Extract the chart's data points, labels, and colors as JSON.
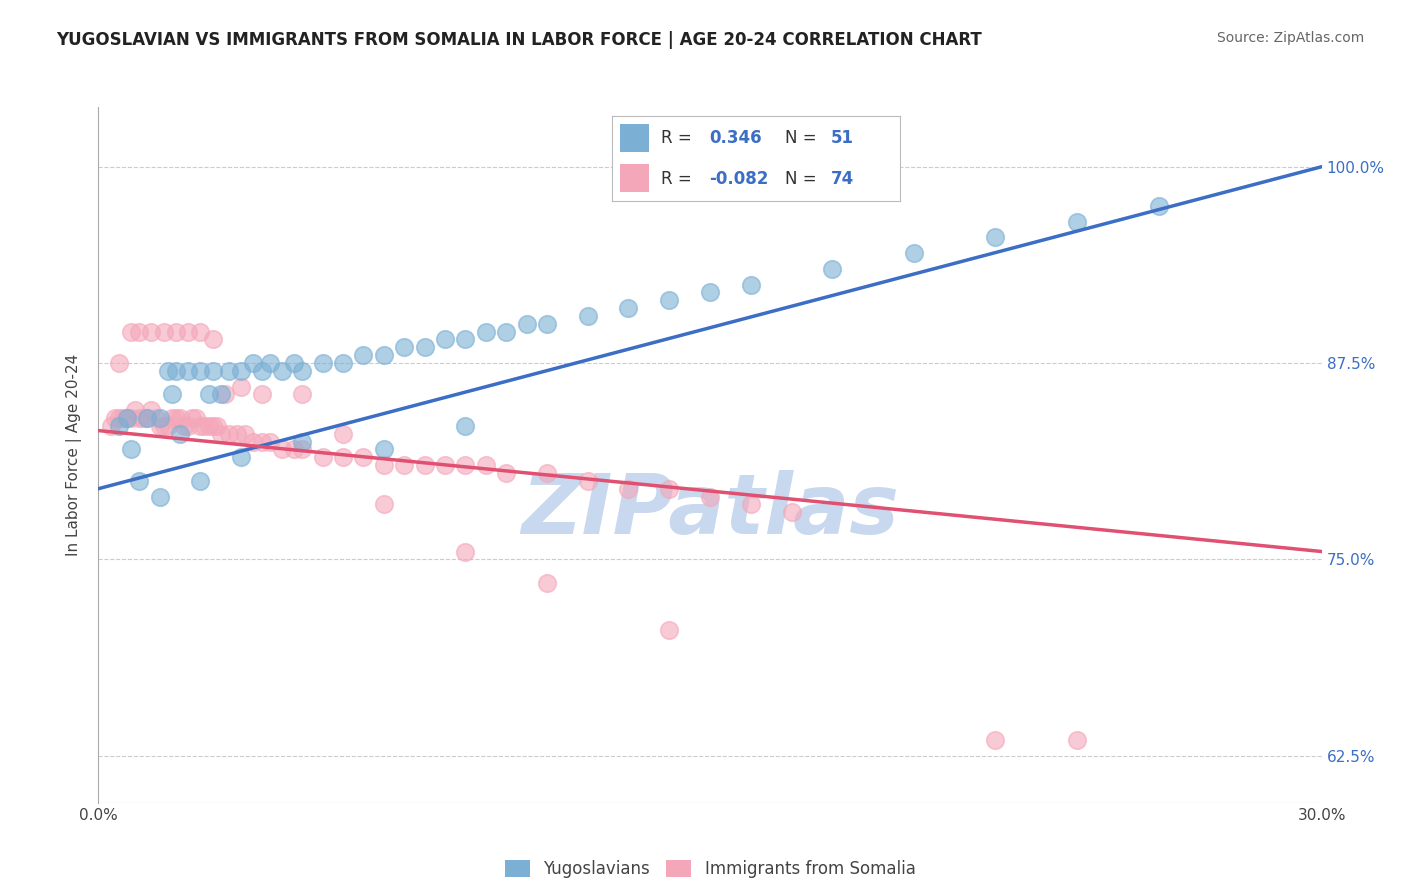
{
  "title": "YUGOSLAVIAN VS IMMIGRANTS FROM SOMALIA IN LABOR FORCE | AGE 20-24 CORRELATION CHART",
  "source": "Source: ZipAtlas.com",
  "ylabel": "In Labor Force | Age 20-24",
  "x_min": 0.0,
  "x_max": 0.3,
  "y_min": 0.595,
  "y_max": 1.038,
  "x_ticks": [
    0.0,
    0.05,
    0.1,
    0.15,
    0.2,
    0.25,
    0.3
  ],
  "x_tick_labels": [
    "0.0%",
    "",
    "",
    "",
    "",
    "",
    "30.0%"
  ],
  "y_ticks": [
    0.625,
    0.75,
    0.875,
    1.0
  ],
  "y_tick_labels": [
    "62.5%",
    "75.0%",
    "87.5%",
    "100.0%"
  ],
  "blue_R": 0.346,
  "blue_N": 51,
  "pink_R": -0.082,
  "pink_N": 74,
  "blue_color": "#7BAFD4",
  "pink_color": "#F4A7B9",
  "blue_line_color": "#3B6EC4",
  "pink_line_color": "#E05070",
  "watermark": "ZIPatlas",
  "watermark_color": "#C8D8EE",
  "legend_label_blue": "Yugoslavians",
  "legend_label_pink": "Immigrants from Somalia",
  "blue_line_x0": 0.0,
  "blue_line_x1": 0.3,
  "blue_line_y0": 0.795,
  "blue_line_y1": 1.0,
  "pink_line_x0": 0.0,
  "pink_line_x1": 0.3,
  "pink_line_y0": 0.832,
  "pink_line_y1": 0.755,
  "blue_x": [
    0.005,
    0.007,
    0.008,
    0.01,
    0.012,
    0.015,
    0.017,
    0.018,
    0.019,
    0.02,
    0.022,
    0.025,
    0.027,
    0.028,
    0.03,
    0.032,
    0.035,
    0.038,
    0.04,
    0.042,
    0.045,
    0.048,
    0.05,
    0.055,
    0.06,
    0.065,
    0.07,
    0.075,
    0.08,
    0.085,
    0.09,
    0.095,
    0.1,
    0.105,
    0.11,
    0.12,
    0.13,
    0.14,
    0.15,
    0.16,
    0.18,
    0.2,
    0.22,
    0.24,
    0.26,
    0.015,
    0.025,
    0.035,
    0.05,
    0.07,
    0.09
  ],
  "blue_y": [
    0.835,
    0.84,
    0.82,
    0.8,
    0.84,
    0.84,
    0.87,
    0.855,
    0.87,
    0.83,
    0.87,
    0.87,
    0.855,
    0.87,
    0.855,
    0.87,
    0.87,
    0.875,
    0.87,
    0.875,
    0.87,
    0.875,
    0.87,
    0.875,
    0.875,
    0.88,
    0.88,
    0.885,
    0.885,
    0.89,
    0.89,
    0.895,
    0.895,
    0.9,
    0.9,
    0.905,
    0.91,
    0.915,
    0.92,
    0.925,
    0.935,
    0.945,
    0.955,
    0.965,
    0.975,
    0.79,
    0.8,
    0.815,
    0.825,
    0.82,
    0.835
  ],
  "pink_x": [
    0.003,
    0.004,
    0.005,
    0.006,
    0.007,
    0.008,
    0.009,
    0.01,
    0.011,
    0.012,
    0.013,
    0.014,
    0.015,
    0.016,
    0.017,
    0.018,
    0.019,
    0.02,
    0.021,
    0.022,
    0.023,
    0.024,
    0.025,
    0.026,
    0.027,
    0.028,
    0.029,
    0.03,
    0.032,
    0.034,
    0.036,
    0.038,
    0.04,
    0.042,
    0.045,
    0.048,
    0.05,
    0.055,
    0.06,
    0.065,
    0.07,
    0.075,
    0.08,
    0.085,
    0.09,
    0.095,
    0.1,
    0.11,
    0.12,
    0.13,
    0.14,
    0.15,
    0.16,
    0.17,
    0.005,
    0.008,
    0.01,
    0.013,
    0.016,
    0.019,
    0.022,
    0.025,
    0.028,
    0.031,
    0.035,
    0.04,
    0.05,
    0.06,
    0.07,
    0.09,
    0.11,
    0.14,
    0.22,
    0.24
  ],
  "pink_y": [
    0.835,
    0.84,
    0.84,
    0.84,
    0.84,
    0.84,
    0.845,
    0.84,
    0.84,
    0.84,
    0.845,
    0.84,
    0.835,
    0.835,
    0.835,
    0.84,
    0.84,
    0.84,
    0.835,
    0.835,
    0.84,
    0.84,
    0.835,
    0.835,
    0.835,
    0.835,
    0.835,
    0.83,
    0.83,
    0.83,
    0.83,
    0.825,
    0.825,
    0.825,
    0.82,
    0.82,
    0.82,
    0.815,
    0.815,
    0.815,
    0.81,
    0.81,
    0.81,
    0.81,
    0.81,
    0.81,
    0.805,
    0.805,
    0.8,
    0.795,
    0.795,
    0.79,
    0.785,
    0.78,
    0.875,
    0.895,
    0.895,
    0.895,
    0.895,
    0.895,
    0.895,
    0.895,
    0.89,
    0.855,
    0.86,
    0.855,
    0.855,
    0.83,
    0.785,
    0.755,
    0.735,
    0.705,
    0.635,
    0.635
  ]
}
